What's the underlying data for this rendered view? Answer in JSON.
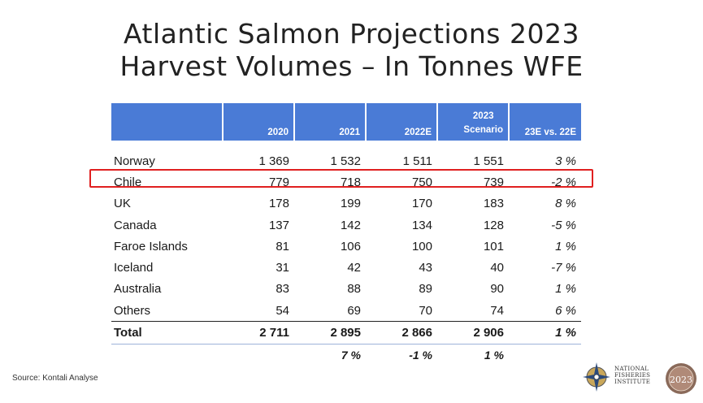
{
  "title": {
    "line1": "Atlantic Salmon Projections 2023",
    "line2": "Harvest Volumes – In Tonnes WFE"
  },
  "chart_data": {
    "type": "table",
    "columns": [
      "",
      "2020",
      "2021",
      "2022E",
      "2023 Scenario",
      "23E vs. 22E"
    ],
    "column_header_lines": [
      [
        "2020"
      ],
      [
        "2021"
      ],
      [
        "2022E"
      ],
      [
        "2023",
        "Scenario"
      ],
      [
        "23E vs. 22E"
      ]
    ],
    "rows": [
      {
        "name": "Norway",
        "values": [
          "1 369",
          "1 532",
          "1 511",
          "1 551"
        ],
        "change": "3 %"
      },
      {
        "name": "Chile",
        "values": [
          "779",
          "718",
          "750",
          "739"
        ],
        "change": "-2 %"
      },
      {
        "name": "UK",
        "values": [
          "178",
          "199",
          "170",
          "183"
        ],
        "change": "8 %"
      },
      {
        "name": "Canada",
        "values": [
          "137",
          "142",
          "134",
          "128"
        ],
        "change": "-5 %"
      },
      {
        "name": "Faroe Islands",
        "values": [
          "81",
          "106",
          "100",
          "101"
        ],
        "change": "1 %"
      },
      {
        "name": "Iceland",
        "values": [
          "31",
          "42",
          "43",
          "40"
        ],
        "change": "-7 %"
      },
      {
        "name": "Australia",
        "values": [
          "83",
          "88",
          "89",
          "90"
        ],
        "change": "1 %"
      },
      {
        "name": "Others",
        "values": [
          "54",
          "69",
          "70",
          "74"
        ],
        "change": "6 %"
      }
    ],
    "total": {
      "name": "Total",
      "values": [
        "2 711",
        "2 895",
        "2 866",
        "2 906"
      ],
      "change": "1 %"
    },
    "annual_growth": [
      "",
      "7 %",
      "-1 %",
      "1 %",
      ""
    ],
    "highlighted_row": "Chile",
    "highlight_color": "#e02020",
    "header_color": "#4a7bd6"
  },
  "footer": {
    "source": "Source: Kontali Analyse",
    "logo_text": [
      "NATIONAL",
      "FISHERIES",
      "INSTITUTE"
    ],
    "seal_text": "2023"
  }
}
